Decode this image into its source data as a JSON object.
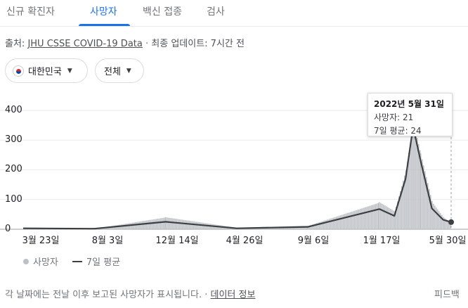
{
  "tabs": [
    {
      "label": "신규 확진자",
      "active": false
    },
    {
      "label": "사망자",
      "active": true
    },
    {
      "label": "백신 접종",
      "active": false
    },
    {
      "label": "검사",
      "active": false
    }
  ],
  "source": {
    "prefix": "출처: ",
    "link": "JHU CSSE COVID-19 Data",
    "separator": " · ",
    "updated": "최종 업데이트: 7시간 전"
  },
  "filters": {
    "region": "대한민국",
    "range": "전체"
  },
  "colors": {
    "accent": "#1a73e8",
    "bars": "#bdc1c6",
    "average_line": "#3c4043"
  },
  "chart_data": {
    "type": "bar",
    "ylim": [
      0,
      400
    ],
    "yticks": [
      "400",
      "300",
      "200",
      "100",
      "0"
    ],
    "xticks": [
      "3월 23일",
      "8월 3일",
      "12월 14일",
      "4월 26일",
      "9월 6일",
      "1월 17일",
      "5월 30일"
    ],
    "series": [
      {
        "name": "사망자",
        "kind": "bar"
      },
      {
        "name": "7일 평균",
        "kind": "line"
      }
    ],
    "x": [
      "2020-03-23",
      "2020-08-03",
      "2020-12-14",
      "2021-04-26",
      "2021-09-06",
      "2022-01-17",
      "2022-02-14",
      "2022-03-07",
      "2022-03-21",
      "2022-04-04",
      "2022-04-25",
      "2022-05-16",
      "2022-05-31"
    ],
    "daily": [
      6,
      2,
      40,
      5,
      12,
      90,
      60,
      200,
      360,
      250,
      90,
      40,
      21
    ],
    "average": [
      3,
      2,
      25,
      3,
      8,
      68,
      45,
      170,
      345,
      230,
      70,
      32,
      24
    ]
  },
  "tooltip": {
    "date": "2022년 5월 31일",
    "deaths": "사망자: 21",
    "average": "7일 평균: 24"
  },
  "legend": {
    "bar_label": "사망자",
    "line_label": "7일 평균"
  },
  "footer": {
    "note": "각 날짜에는 전날 이후 보고된 사망자가 표시됩니다.",
    "separator": " · ",
    "data_info": "데이터 정보",
    "feedback": "피드백"
  }
}
